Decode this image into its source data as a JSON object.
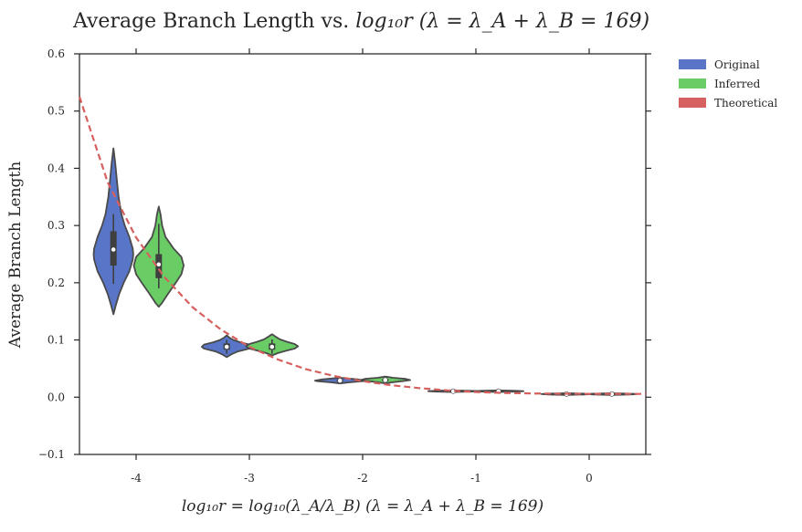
{
  "chart_data": {
    "type": "violin",
    "title_text": "Average Branch Length vs. ",
    "title_math": "log₁₀r (λ = λ_A + λ_B = 169)",
    "xlabel": "log₁₀r = log₁₀(λ_A/λ_B) (λ = λ_A + λ_B = 169)",
    "ylabel": "Average Branch Length",
    "xlim": [
      -4.5,
      0.5
    ],
    "ylim": [
      -0.1,
      0.6
    ],
    "x_ticks": [
      -4,
      -3,
      -2,
      -1,
      0
    ],
    "x_tick_labels": [
      "-4",
      "-3",
      "-2",
      "-1",
      "0"
    ],
    "y_ticks": [
      -0.1,
      0.0,
      0.1,
      0.2,
      0.3,
      0.4,
      0.5,
      0.6
    ],
    "y_tick_labels": [
      "−0.1",
      "0.0",
      "0.1",
      "0.2",
      "0.3",
      "0.4",
      "0.5",
      "0.6"
    ],
    "grid": false,
    "legend_placement": "outside-top-right",
    "series": [
      {
        "name": "Original",
        "color": "#5875c8",
        "violins": [
          {
            "x": -4.2,
            "min": 0.145,
            "max": 0.435,
            "q1": 0.23,
            "median": 0.258,
            "q3": 0.29,
            "whisker_low": 0.198,
            "whisker_high": 0.32,
            "profile": [
              [
                0.145,
                0.0
              ],
              [
                0.16,
                0.02
              ],
              [
                0.18,
                0.05
              ],
              [
                0.2,
                0.09
              ],
              [
                0.22,
                0.14
              ],
              [
                0.24,
                0.17
              ],
              [
                0.25,
                0.175
              ],
              [
                0.26,
                0.17
              ],
              [
                0.28,
                0.14
              ],
              [
                0.3,
                0.1
              ],
              [
                0.32,
                0.07
              ],
              [
                0.35,
                0.045
              ],
              [
                0.38,
                0.03
              ],
              [
                0.41,
                0.015
              ],
              [
                0.435,
                0.0
              ]
            ]
          },
          {
            "x": -3.2,
            "min": 0.07,
            "max": 0.108,
            "q1": 0.083,
            "median": 0.088,
            "q3": 0.094,
            "whisker_low": 0.076,
            "whisker_high": 0.1,
            "profile": [
              [
                0.07,
                0.0
              ],
              [
                0.075,
                0.04
              ],
              [
                0.08,
                0.1
              ],
              [
                0.085,
                0.2
              ],
              [
                0.088,
                0.22
              ],
              [
                0.092,
                0.2
              ],
              [
                0.096,
                0.12
              ],
              [
                0.1,
                0.06
              ],
              [
                0.104,
                0.025
              ],
              [
                0.108,
                0.0
              ]
            ]
          },
          {
            "x": -2.2,
            "min": 0.024,
            "max": 0.034,
            "q1": 0.027,
            "median": 0.029,
            "q3": 0.031,
            "whisker_low": 0.025,
            "whisker_high": 0.033,
            "profile": [
              [
                0.024,
                0.0
              ],
              [
                0.026,
                0.08
              ],
              [
                0.028,
                0.2
              ],
              [
                0.029,
                0.22
              ],
              [
                0.031,
                0.16
              ],
              [
                0.033,
                0.06
              ],
              [
                0.034,
                0.0
              ]
            ]
          },
          {
            "x": -1.2,
            "min": 0.009,
            "max": 0.012,
            "q1": 0.01,
            "median": 0.0105,
            "q3": 0.011,
            "whisker_low": 0.0095,
            "whisker_high": 0.0115,
            "profile": [
              [
                0.009,
                0.0
              ],
              [
                0.0098,
                0.16
              ],
              [
                0.0105,
                0.22
              ],
              [
                0.0112,
                0.16
              ],
              [
                0.012,
                0.0
              ]
            ]
          },
          {
            "x": -0.2,
            "min": 0.004,
            "max": 0.007,
            "q1": 0.005,
            "median": 0.0055,
            "q3": 0.006,
            "whisker_low": 0.0045,
            "whisker_high": 0.0065,
            "profile": [
              [
                0.004,
                0.0
              ],
              [
                0.0048,
                0.16
              ],
              [
                0.0055,
                0.22
              ],
              [
                0.0062,
                0.16
              ],
              [
                0.007,
                0.0
              ]
            ]
          }
        ]
      },
      {
        "name": "Inferred",
        "color": "#6acc65",
        "violins": [
          {
            "x": -3.8,
            "min": 0.158,
            "max": 0.333,
            "q1": 0.208,
            "median": 0.232,
            "q3": 0.25,
            "whisker_low": 0.19,
            "whisker_high": 0.303,
            "profile": [
              [
                0.158,
                0.0
              ],
              [
                0.165,
                0.03
              ],
              [
                0.18,
                0.08
              ],
              [
                0.2,
                0.15
              ],
              [
                0.215,
                0.2
              ],
              [
                0.23,
                0.22
              ],
              [
                0.245,
                0.2
              ],
              [
                0.26,
                0.13
              ],
              [
                0.28,
                0.06
              ],
              [
                0.3,
                0.03
              ],
              [
                0.32,
                0.015
              ],
              [
                0.333,
                0.0
              ]
            ]
          },
          {
            "x": -2.8,
            "min": 0.073,
            "max": 0.11,
            "q1": 0.083,
            "median": 0.088,
            "q3": 0.094,
            "whisker_low": 0.076,
            "whisker_high": 0.101,
            "profile": [
              [
                0.073,
                0.0
              ],
              [
                0.077,
                0.05
              ],
              [
                0.081,
                0.12
              ],
              [
                0.085,
                0.2
              ],
              [
                0.089,
                0.23
              ],
              [
                0.093,
                0.2
              ],
              [
                0.097,
                0.13
              ],
              [
                0.101,
                0.07
              ],
              [
                0.106,
                0.03
              ],
              [
                0.11,
                0.0
              ]
            ]
          },
          {
            "x": -1.8,
            "min": 0.024,
            "max": 0.036,
            "q1": 0.028,
            "median": 0.03,
            "q3": 0.032,
            "whisker_low": 0.026,
            "whisker_high": 0.034,
            "profile": [
              [
                0.024,
                0.0
              ],
              [
                0.026,
                0.06
              ],
              [
                0.028,
                0.15
              ],
              [
                0.03,
                0.22
              ],
              [
                0.032,
                0.18
              ],
              [
                0.034,
                0.07
              ],
              [
                0.036,
                0.0
              ]
            ]
          },
          {
            "x": -0.8,
            "min": 0.009,
            "max": 0.012,
            "q1": 0.01,
            "median": 0.0105,
            "q3": 0.011,
            "whisker_low": 0.0095,
            "whisker_high": 0.0115,
            "profile": [
              [
                0.009,
                0.0
              ],
              [
                0.0098,
                0.16
              ],
              [
                0.0105,
                0.22
              ],
              [
                0.0112,
                0.16
              ],
              [
                0.012,
                0.0
              ]
            ]
          },
          {
            "x": 0.2,
            "min": 0.004,
            "max": 0.007,
            "q1": 0.005,
            "median": 0.0055,
            "q3": 0.006,
            "whisker_low": 0.0045,
            "whisker_high": 0.0065,
            "profile": [
              [
                0.004,
                0.0
              ],
              [
                0.0048,
                0.16
              ],
              [
                0.0055,
                0.22
              ],
              [
                0.0062,
                0.16
              ],
              [
                0.007,
                0.0
              ]
            ]
          }
        ]
      },
      {
        "name": "Theoretical",
        "color": "#d65f5f",
        "style": "dashed-line",
        "x": [
          -4.5,
          -4.25,
          -4.0,
          -3.75,
          -3.5,
          -3.25,
          -3.0,
          -2.75,
          -2.5,
          -2.25,
          -2.0,
          -1.75,
          -1.5,
          -1.25,
          -1.0,
          -0.75,
          -0.5,
          -0.25,
          0.0,
          0.25,
          0.5
        ],
        "y": [
          0.525,
          0.375,
          0.279,
          0.21,
          0.157,
          0.118,
          0.088,
          0.066,
          0.049,
          0.037,
          0.028,
          0.021,
          0.016,
          0.012,
          0.009,
          0.0075,
          0.0065,
          0.006,
          0.0058,
          0.0057,
          0.0057
        ]
      }
    ],
    "box_color": "#3f3f3f",
    "outline_color": "#4a4a4a",
    "median_color": "#ffffff"
  }
}
